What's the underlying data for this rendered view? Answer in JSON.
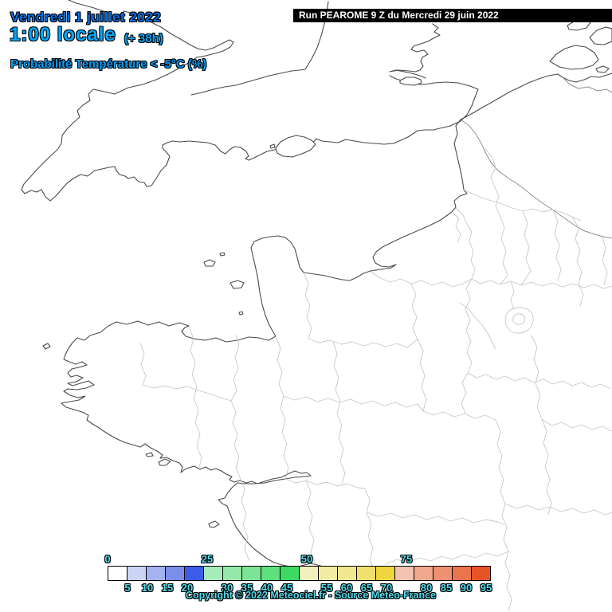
{
  "header": {
    "date": "Vendredi 1 juillet 2022",
    "time": "1:00 locale",
    "forecast_offset": "(+ 38h)",
    "subtitle": "Probabilité Température < -5°C (%)"
  },
  "run_banner": {
    "label": "Run PEAROME 9 Z du Mercredi 29 juin 2022"
  },
  "legend": {
    "unit": "%",
    "values": [
      0,
      5,
      10,
      15,
      20,
      25,
      30,
      35,
      40,
      45,
      50,
      55,
      60,
      65,
      70,
      75,
      80,
      85,
      90,
      95
    ],
    "colors": [
      "#ffffff",
      "#ccd4f6",
      "#a4b2f0",
      "#7b8eea",
      "#3c5ce8",
      "#a6ecb8",
      "#95e8a8",
      "#7ce496",
      "#5ee07e",
      "#3cda62",
      "#f2f0bc",
      "#f0eca4",
      "#f0e78e",
      "#eedf6e",
      "#eed63c",
      "#f4c3b0",
      "#f0a88c",
      "#ee9170",
      "#ea744c",
      "#e65426"
    ],
    "major_labels": [
      "0",
      "25",
      "50",
      "75"
    ]
  },
  "footer": {
    "copyright": "Copyright © 2022 Meteociel.fr - Source Météo-France"
  },
  "colors": {
    "date_text": "#0072e8",
    "time_text": "#00a8ff",
    "subtitle_text": "#009fff",
    "tick_text": "#4fdcee",
    "banner_bg": "#000000",
    "banner_text": "#ffffff",
    "coastline": "#4a4a4a",
    "national_border": "#8f8f8f",
    "department_border": "#c7c7c7"
  }
}
